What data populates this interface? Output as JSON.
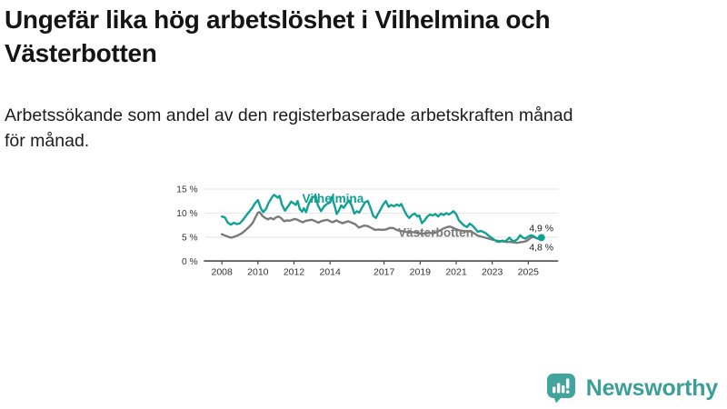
{
  "header": {
    "title": "Ungefär lika hög arbetslöshet i Vilhelmina och\nVästerbotten",
    "subtitle": "Arbetssökande som andel av den registerbaserade arbetskraften månad\nför månad."
  },
  "footer": {
    "brand": "Newsworthy",
    "brand_color": "#3b9e99",
    "logo_icon": "bar-chart-speech-bubble-icon"
  },
  "chart_data": {
    "type": "line",
    "title": "Ungefär lika hög arbetslöshet i Vilhelmina och Västerbotten",
    "subtitle": "Arbetssökande som andel av den registerbaserade arbetskraften månad för månad.",
    "xlabel": "",
    "ylabel": "",
    "grid": true,
    "legend_position": "inline-labels-on-lines",
    "xlim": [
      2008,
      2025.9
    ],
    "ylim": [
      0,
      15
    ],
    "y_ticks": [
      {
        "value": 0,
        "label": "0 %"
      },
      {
        "value": 5,
        "label": "5 %"
      },
      {
        "value": 10,
        "label": "10 %"
      },
      {
        "value": 15,
        "label": "15 %"
      }
    ],
    "x_ticks": [
      {
        "value": 2008,
        "label": "2008"
      },
      {
        "value": 2010,
        "label": "2010"
      },
      {
        "value": 2012,
        "label": "2012"
      },
      {
        "value": 2014,
        "label": "2014"
      },
      {
        "value": 2017,
        "label": "2017"
      },
      {
        "value": 2019,
        "label": "2019"
      },
      {
        "value": 2021,
        "label": "2021"
      },
      {
        "value": 2023,
        "label": "2023"
      },
      {
        "value": 2025,
        "label": "2025"
      }
    ],
    "series": [
      {
        "name": "Vilhelmina",
        "color": "#10a193",
        "end_label": "4,9 %",
        "end_value": 4.9,
        "points": [
          [
            2008.0,
            9.3
          ],
          [
            2008.17,
            9.1
          ],
          [
            2008.33,
            8.0
          ],
          [
            2008.5,
            7.6
          ],
          [
            2008.67,
            8.0
          ],
          [
            2008.83,
            7.7
          ],
          [
            2009.0,
            7.9
          ],
          [
            2009.17,
            8.6
          ],
          [
            2009.33,
            9.4
          ],
          [
            2009.5,
            10.2
          ],
          [
            2009.67,
            11.0
          ],
          [
            2009.83,
            12.0
          ],
          [
            2010.0,
            12.7
          ],
          [
            2010.17,
            10.9
          ],
          [
            2010.3,
            10.2
          ],
          [
            2010.45,
            10.9
          ],
          [
            2010.6,
            12.2
          ],
          [
            2010.8,
            13.4
          ],
          [
            2010.9,
            13.8
          ],
          [
            2011.0,
            13.5
          ],
          [
            2011.1,
            13.2
          ],
          [
            2011.2,
            13.6
          ],
          [
            2011.33,
            11.8
          ],
          [
            2011.5,
            10.5
          ],
          [
            2011.67,
            11.4
          ],
          [
            2011.85,
            12.4
          ],
          [
            2012.0,
            12.0
          ],
          [
            2012.1,
            11.7
          ],
          [
            2012.2,
            12.5
          ],
          [
            2012.33,
            10.8
          ],
          [
            2012.45,
            10.3
          ],
          [
            2012.55,
            11.0
          ],
          [
            2012.67,
            10.2
          ],
          [
            2012.8,
            11.8
          ],
          [
            2012.95,
            12.9
          ],
          [
            2013.1,
            13.4
          ],
          [
            2013.2,
            13.6
          ],
          [
            2013.33,
            11.6
          ],
          [
            2013.5,
            10.4
          ],
          [
            2013.67,
            11.4
          ],
          [
            2013.83,
            11.9
          ],
          [
            2014.0,
            12.2
          ],
          [
            2014.1,
            13.4
          ],
          [
            2014.25,
            11.6
          ],
          [
            2014.37,
            9.8
          ],
          [
            2014.5,
            10.6
          ],
          [
            2014.62,
            11.6
          ],
          [
            2014.75,
            11.1
          ],
          [
            2014.9,
            11.9
          ],
          [
            2015.05,
            12.6
          ],
          [
            2015.2,
            11.6
          ],
          [
            2015.35,
            9.9
          ],
          [
            2015.5,
            10.4
          ],
          [
            2015.62,
            10.1
          ],
          [
            2015.8,
            11.3
          ],
          [
            2015.95,
            12.3
          ],
          [
            2016.1,
            12.5
          ],
          [
            2016.25,
            11.0
          ],
          [
            2016.4,
            9.4
          ],
          [
            2016.55,
            9.0
          ],
          [
            2016.67,
            9.9
          ],
          [
            2016.8,
            10.7
          ],
          [
            2016.95,
            11.8
          ],
          [
            2017.1,
            12.5
          ],
          [
            2017.25,
            11.3
          ],
          [
            2017.4,
            11.7
          ],
          [
            2017.55,
            11.4
          ],
          [
            2017.7,
            11.8
          ],
          [
            2017.85,
            11.5
          ],
          [
            2017.95,
            11.9
          ],
          [
            2018.1,
            10.7
          ],
          [
            2018.25,
            9.6
          ],
          [
            2018.4,
            9.0
          ],
          [
            2018.55,
            9.6
          ],
          [
            2018.7,
            9.9
          ],
          [
            2018.85,
            9.3
          ],
          [
            2018.95,
            9.5
          ],
          [
            2019.1,
            7.9
          ],
          [
            2019.25,
            8.5
          ],
          [
            2019.4,
            9.3
          ],
          [
            2019.55,
            9.7
          ],
          [
            2019.7,
            9.5
          ],
          [
            2019.85,
            9.8
          ],
          [
            2020.0,
            9.3
          ],
          [
            2020.15,
            9.9
          ],
          [
            2020.3,
            9.6
          ],
          [
            2020.45,
            10.0
          ],
          [
            2020.6,
            9.7
          ],
          [
            2020.75,
            10.1
          ],
          [
            2020.85,
            10.4
          ],
          [
            2021.0,
            9.8
          ],
          [
            2021.15,
            8.5
          ],
          [
            2021.3,
            7.9
          ],
          [
            2021.45,
            7.4
          ],
          [
            2021.6,
            7.1
          ],
          [
            2021.75,
            7.8
          ],
          [
            2021.9,
            7.4
          ],
          [
            2022.05,
            6.8
          ],
          [
            2022.2,
            6.1
          ],
          [
            2022.35,
            6.3
          ],
          [
            2022.5,
            6.1
          ],
          [
            2022.65,
            5.8
          ],
          [
            2022.8,
            5.3
          ],
          [
            2022.95,
            4.9
          ],
          [
            2023.1,
            4.5
          ],
          [
            2023.25,
            4.1
          ],
          [
            2023.4,
            4.0
          ],
          [
            2023.55,
            4.3
          ],
          [
            2023.7,
            4.1
          ],
          [
            2023.85,
            4.5
          ],
          [
            2023.95,
            4.9
          ],
          [
            2024.1,
            4.3
          ],
          [
            2024.25,
            4.2
          ],
          [
            2024.4,
            4.6
          ],
          [
            2024.55,
            5.4
          ],
          [
            2024.7,
            4.9
          ],
          [
            2024.85,
            4.7
          ],
          [
            2025.0,
            5.1
          ],
          [
            2025.15,
            5.4
          ],
          [
            2025.3,
            5.2
          ],
          [
            2025.45,
            4.8
          ],
          [
            2025.6,
            4.65
          ],
          [
            2025.7,
            4.9
          ]
        ]
      },
      {
        "name": "Västerbotten",
        "color": "#7a7a7a",
        "end_label": "4,8 %",
        "end_value": 4.8,
        "points": [
          [
            2008.0,
            5.6
          ],
          [
            2008.2,
            5.3
          ],
          [
            2008.4,
            5.0
          ],
          [
            2008.55,
            4.9
          ],
          [
            2008.7,
            5.1
          ],
          [
            2008.9,
            5.4
          ],
          [
            2009.1,
            5.8
          ],
          [
            2009.3,
            6.4
          ],
          [
            2009.5,
            7.1
          ],
          [
            2009.7,
            7.9
          ],
          [
            2009.85,
            9.0
          ],
          [
            2010.0,
            10.1
          ],
          [
            2010.1,
            10.2
          ],
          [
            2010.25,
            9.4
          ],
          [
            2010.4,
            9.0
          ],
          [
            2010.55,
            8.7
          ],
          [
            2010.7,
            9.0
          ],
          [
            2010.85,
            8.7
          ],
          [
            2011.0,
            9.1
          ],
          [
            2011.15,
            9.3
          ],
          [
            2011.3,
            8.9
          ],
          [
            2011.45,
            8.3
          ],
          [
            2011.6,
            8.5
          ],
          [
            2011.75,
            8.4
          ],
          [
            2011.9,
            8.6
          ],
          [
            2012.05,
            8.8
          ],
          [
            2012.2,
            8.6
          ],
          [
            2012.35,
            8.3
          ],
          [
            2012.5,
            8.1
          ],
          [
            2012.65,
            8.4
          ],
          [
            2012.8,
            8.5
          ],
          [
            2013.0,
            8.6
          ],
          [
            2013.2,
            8.3
          ],
          [
            2013.35,
            8.0
          ],
          [
            2013.5,
            8.3
          ],
          [
            2013.7,
            8.5
          ],
          [
            2013.85,
            8.6
          ],
          [
            2014.0,
            8.3
          ],
          [
            2014.15,
            8.1
          ],
          [
            2014.35,
            8.5
          ],
          [
            2014.5,
            8.2
          ],
          [
            2014.7,
            7.9
          ],
          [
            2014.85,
            8.1
          ],
          [
            2015.0,
            8.3
          ],
          [
            2015.2,
            8.0
          ],
          [
            2015.4,
            7.7
          ],
          [
            2015.6,
            7.0
          ],
          [
            2015.75,
            7.2
          ],
          [
            2015.9,
            7.4
          ],
          [
            2016.1,
            7.3
          ],
          [
            2016.3,
            6.9
          ],
          [
            2016.5,
            6.5
          ],
          [
            2016.7,
            6.6
          ],
          [
            2016.9,
            6.5
          ],
          [
            2017.1,
            6.6
          ],
          [
            2017.3,
            6.9
          ],
          [
            2017.5,
            6.9
          ],
          [
            2017.7,
            6.5
          ],
          [
            2017.9,
            6.3
          ],
          [
            2018.1,
            6.2
          ],
          [
            2018.3,
            6.0
          ],
          [
            2018.5,
            6.1
          ],
          [
            2018.7,
            6.0
          ],
          [
            2018.9,
            5.9
          ],
          [
            2019.1,
            5.7
          ],
          [
            2019.3,
            5.8
          ],
          [
            2019.5,
            5.9
          ],
          [
            2019.7,
            5.8
          ],
          [
            2019.9,
            6.0
          ],
          [
            2020.1,
            6.4
          ],
          [
            2020.3,
            6.8
          ],
          [
            2020.5,
            7.1
          ],
          [
            2020.65,
            7.2
          ],
          [
            2020.8,
            7.0
          ],
          [
            2021.0,
            6.6
          ],
          [
            2021.2,
            6.4
          ],
          [
            2021.4,
            6.3
          ],
          [
            2021.6,
            6.2
          ],
          [
            2021.8,
            6.2
          ],
          [
            2022.0,
            5.8
          ],
          [
            2022.2,
            5.3
          ],
          [
            2022.4,
            5.1
          ],
          [
            2022.6,
            4.9
          ],
          [
            2022.8,
            4.7
          ],
          [
            2023.0,
            4.5
          ],
          [
            2023.2,
            4.3
          ],
          [
            2023.4,
            4.2
          ],
          [
            2023.6,
            4.1
          ],
          [
            2023.8,
            4.0
          ],
          [
            2024.0,
            4.0
          ],
          [
            2024.2,
            3.9
          ],
          [
            2024.35,
            3.8
          ],
          [
            2024.5,
            3.9
          ],
          [
            2024.7,
            4.0
          ],
          [
            2024.9,
            4.2
          ],
          [
            2025.05,
            4.6
          ],
          [
            2025.2,
            5.0
          ],
          [
            2025.35,
            5.0
          ],
          [
            2025.5,
            4.7
          ],
          [
            2025.7,
            4.8
          ]
        ]
      }
    ]
  }
}
